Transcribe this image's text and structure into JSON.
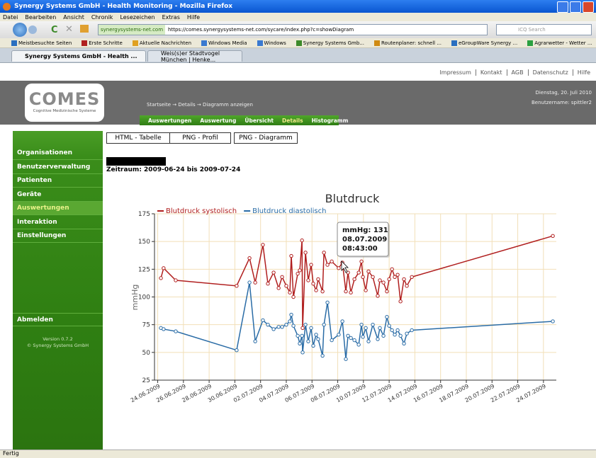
{
  "window_title": "Synergy Systems GmbH - Health Monitoring - Mozilla Firefox",
  "menu": [
    "Datei",
    "Bearbeiten",
    "Ansicht",
    "Chronik",
    "Lesezeichen",
    "Extras",
    "Hilfe"
  ],
  "site_badge": "synergysystems-net.com",
  "url": "https://comes.synergysystems-net.com/sycare/index.php?c=showDiagram",
  "search_placeholder": "ICQ Search",
  "bookmarks": [
    "Meistbesuchte Seiten",
    "Erste Schritte",
    "Aktuelle Nachrichten",
    "Windows Media",
    "Windows",
    "Synergy Systems Gmb...",
    "Routenplaner: schnell ...",
    "eGroupWare Synergy ...",
    "Agrarwetter - Wetter ..."
  ],
  "tabs": [
    "Synergy Systems GmbH - Health ...",
    "Weis(s)er Stadtvogel München | Henke..."
  ],
  "top_links": [
    "Impressum",
    "Kontakt",
    "AGB",
    "Datenschutz",
    "Hilfe"
  ],
  "logo": {
    "name": "COMES",
    "tagline": "Cognitive Medizinische Systeme"
  },
  "breadcrumb": "Startseite → Details → Diagramm anzeigen",
  "date": "Dienstag, 20. Juli 2010",
  "user": "Benutzername: spittler2",
  "submenu": [
    "Auswertungen",
    "Auswertung",
    "Übersicht",
    "Details",
    "Histogramm"
  ],
  "sidebar": [
    "Organisationen",
    "Benutzerverwaltung",
    "Patienten",
    "Geräte",
    "Auswertungen",
    "Interaktion",
    "Einstellungen"
  ],
  "logout": "Abmelden",
  "version": "Version 0.7.2",
  "copyright": "© Synergy Systems GmbH",
  "buttons": [
    "HTML - Tabelle",
    "PNG - Profil",
    "PNG - Diagramm"
  ],
  "period": "Zeitraum: 2009-06-24 bis 2009-07-24",
  "status": "Fertig",
  "chart_data": {
    "type": "line",
    "title": "Blutdruck",
    "y_label": "mmHg",
    "ylim": [
      25,
      175
    ],
    "yticks": [
      25,
      50,
      75,
      100,
      125,
      150,
      175
    ],
    "xlim": [
      "2009-06-23T18:00",
      "2009-07-25T00:00"
    ],
    "xticks": [
      {
        "value": "2009-06-24T00:00",
        "label": "24.06.2009"
      },
      {
        "value": "2009-06-26T00:00",
        "label": "26.06.2009"
      },
      {
        "value": "2009-06-28T00:00",
        "label": "28.06.2009"
      },
      {
        "value": "2009-06-30T00:00",
        "label": "30.06.2009"
      },
      {
        "value": "2009-07-02T00:00",
        "label": "02.07.2009"
      },
      {
        "value": "2009-07-04T00:00",
        "label": "04.07.2009"
      },
      {
        "value": "2009-07-06T00:00",
        "label": "06.07.2009"
      },
      {
        "value": "2009-07-08T00:00",
        "label": "08.07.2009"
      },
      {
        "value": "2009-07-10T00:00",
        "label": "10.07.2009"
      },
      {
        "value": "2009-07-12T00:00",
        "label": "12.07.2009"
      },
      {
        "value": "2009-07-14T00:00",
        "label": "14.07.2009"
      },
      {
        "value": "2009-07-16T00:00",
        "label": "16.07.2009"
      },
      {
        "value": "2009-07-18T00:00",
        "label": "18.07.2009"
      },
      {
        "value": "2009-07-20T00:00",
        "label": "20.07.2009"
      },
      {
        "value": "2009-07-22T00:00",
        "label": "22.07.2009"
      },
      {
        "value": "2009-07-24T00:00",
        "label": "24.07.2009"
      }
    ],
    "grid": true,
    "legend": "top-left",
    "x": [
      "2009-06-24T06:00",
      "2009-06-24T11:00",
      "2009-06-25T09:40",
      "2009-06-30T03:20",
      "2009-07-01T03:20",
      "2009-07-01T14:00",
      "2009-07-02T04:20",
      "2009-07-02T13:40",
      "2009-07-03T00:20",
      "2009-07-03T09:40",
      "2009-07-03T16:10",
      "2009-07-04T00:00",
      "2009-07-04T06:40",
      "2009-07-04T09:20",
      "2009-07-04T13:20",
      "2009-07-04T21:20",
      "2009-07-05T01:10",
      "2009-07-05T05:20",
      "2009-07-05T06:30",
      "2009-07-05T11:50",
      "2009-07-05T17:00",
      "2009-07-05T22:20",
      "2009-07-06T02:20",
      "2009-07-06T07:40",
      "2009-07-06T11:30",
      "2009-07-06T19:40",
      "2009-07-06T22:20",
      "2009-07-07T04:50",
      "2009-07-07T12:50",
      "2009-07-08T01:50",
      "2009-07-08T08:43",
      "2009-07-08T15:10",
      "2009-07-08T19:10",
      "2009-07-09T00:30",
      "2009-07-09T07:10",
      "2009-07-09T15:10",
      "2009-07-09T20:20",
      "2009-07-09T23:00",
      "2009-07-10T04:20",
      "2009-07-10T09:30",
      "2009-07-10T17:30",
      "2009-07-11T02:40",
      "2009-07-11T06:40",
      "2009-07-11T13:20",
      "2009-07-11T19:50",
      "2009-07-12T00:00",
      "2009-07-12T05:20",
      "2009-07-12T10:30",
      "2009-07-12T15:50",
      "2009-07-12T21:10",
      "2009-07-13T03:40",
      "2009-07-13T09:00",
      "2009-07-13T18:20",
      "2009-07-24T17:30"
    ],
    "series": [
      {
        "name": "Blutdruck systolisch",
        "color": "#b01e1e",
        "values": [
          117,
          126,
          115,
          110,
          135,
          113,
          147,
          112,
          122,
          108,
          118,
          110,
          104,
          137,
          100,
          121,
          124,
          151,
          72,
          140,
          115,
          129,
          112,
          106,
          116,
          105,
          140,
          129,
          132,
          126,
          131,
          105,
          122,
          104,
          116,
          122,
          132,
          118,
          106,
          123,
          118,
          101,
          115,
          113,
          105,
          116,
          125,
          118,
          120,
          96,
          116,
          110,
          118,
          155
        ]
      },
      {
        "name": "Blutdruck diastolisch",
        "color": "#2a6ca6",
        "values": [
          72,
          71,
          69,
          52,
          113,
          60,
          79,
          75,
          71,
          73,
          73,
          75,
          78,
          84,
          74,
          65,
          58,
          65,
          50,
          75,
          60,
          72,
          56,
          66,
          62,
          47,
          75,
          95,
          61,
          66,
          78,
          44,
          65,
          63,
          61,
          57,
          75,
          64,
          72,
          60,
          75,
          62,
          72,
          65,
          82,
          74,
          70,
          66,
          70,
          65,
          58,
          67,
          70,
          78
        ]
      }
    ],
    "tooltip": [
      "mmHg: 131",
      "08.07.2009",
      "08:43:00"
    ]
  }
}
